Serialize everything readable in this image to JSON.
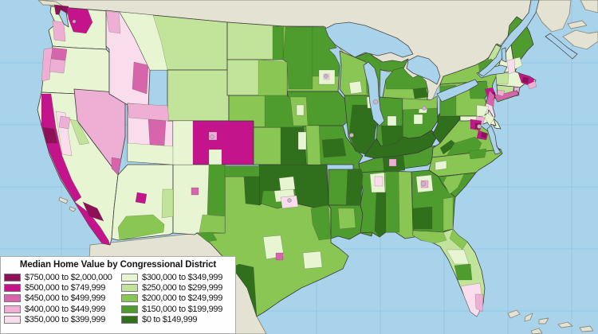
{
  "legend": {
    "title": "Median Home Value by Congressional District",
    "items": [
      {
        "key": "b750",
        "label": "$750,000 to $2,000,000",
        "color": "#8E1057"
      },
      {
        "key": "b500",
        "label": "$500,000 to $749,999",
        "color": "#C4148C"
      },
      {
        "key": "b450",
        "label": "$450,000 to $499,999",
        "color": "#D765AB"
      },
      {
        "key": "b400",
        "label": "$400,000 to $449,999",
        "color": "#EFAFD4"
      },
      {
        "key": "b350",
        "label": "$350,000 to $399,999",
        "color": "#FADDEC"
      },
      {
        "key": "b300",
        "label": "$300,000 to $349,999",
        "color": "#E8F5D2"
      },
      {
        "key": "b250",
        "label": "$250,000 to $299,999",
        "color": "#C2E49A"
      },
      {
        "key": "b200",
        "label": "$200,000 to $249,999",
        "color": "#8AC653"
      },
      {
        "key": "b150",
        "label": "$150,000 to $199,999",
        "color": "#4F9C2E"
      },
      {
        "key": "b0",
        "label": "$0 to $149,999",
        "color": "#30701C"
      }
    ]
  },
  "map": {
    "colors": {
      "ocean": "#A9D3EB",
      "graticule": "#8FC0DF",
      "foreign": "#E4E3D3",
      "foreign_border": "#8C8C7C",
      "metro": "#CBB3CB"
    },
    "regions": {
      "WA": "b300",
      "OR": "b300",
      "CA": "b300",
      "NV": "b400",
      "ID": "b350",
      "MT": "b250",
      "WY": "b250",
      "UT": "b350",
      "CO": "b500",
      "AZ": "b300",
      "NM": "b300",
      "ND": "b250",
      "SD": "b250",
      "NE": "b200",
      "KS": "b200",
      "OK": "b0",
      "TX": "b200",
      "MN": "b200",
      "IA": "b150",
      "MO": "b150",
      "AR": "b150",
      "LA": "b150",
      "WI": "b200",
      "IL": "b150",
      "MI": "b200",
      "MIUP": "b150",
      "IN": "b150",
      "OH": "b150",
      "KY": "b0",
      "TN": "b150",
      "WV": "b0",
      "VA": "b200",
      "NC": "b200",
      "SC": "b150",
      "GA": "b150",
      "AL": "b200",
      "MS": "b150",
      "FL": "b250",
      "PA": "b200",
      "NY": "b200",
      "NJ": "b350",
      "MD": "b300",
      "DE": "b300",
      "VT": "b250",
      "NH": "b300",
      "ME": "b150",
      "MA": "b300",
      "CT": "b250",
      "RI": "b400"
    },
    "districts": {
      "wa-top": "b750",
      "wa-seattle": "b500",
      "wa-coast": "b400",
      "or-coast": "b400",
      "or-portland": "b450",
      "or-salem": "b400",
      "ca-north-coast": "b500",
      "ca-south-coast": "b500",
      "ca-sf": "b750",
      "ca-la": "b750",
      "ca-valley": "b350",
      "ca-sac": "b400",
      "ca-sierra": "b250",
      "nv-vegas": "b450",
      "id-panhandle": "b400",
      "id-east": "b450",
      "mt-west": "b300",
      "ut-north": "b400",
      "ut-slc": "b450",
      "ut-south": "b300",
      "co-west": "b300",
      "co-springs": "b300",
      "co-denver": "b400",
      "az-phoenix": "b500",
      "az-south": "b200",
      "az-east": "b250",
      "nm-east": "b150",
      "nm-se": "b200",
      "nm-abq": "b450",
      "nd-east": "b150",
      "sd-east": "b200",
      "ne-east": "b150",
      "ks-east": "b0",
      "ks-kc": "b300",
      "ok-panhandle": "b150",
      "ok-center": "b300",
      "ok-south": "b150",
      "tx-panhandle": "b0",
      "tx-south": "b0",
      "tx-east": "b150",
      "tx-dfw-outer": "b300",
      "tx-dfw": "b350",
      "tx-austin": "b450",
      "tx-central": "b300",
      "tx-houston": "b300",
      "tx-elpaso": "b150",
      "mn-west": "b150",
      "mn-ne": "b150",
      "mn-msp-outer": "b300",
      "mn-msp": "b350",
      "ia-west": "b200",
      "ia-desmoines": "b300",
      "mo-west": "b200",
      "mo-ozark": "b0",
      "ar-east": "b0",
      "la-center": "b200",
      "wi-east": "b150",
      "wi-south": "b300",
      "il-south": "b0",
      "il-chicago-outer": "b300",
      "il-chicago": "b400",
      "mi-north": "b150",
      "mi-thumb": "b0",
      "mi-detroit": "b300",
      "in-south": "b0",
      "in-indy": "b300",
      "oh-north": "b200",
      "oh-columbus": "b300",
      "tn-middle": "b0",
      "tn-nashville": "b400",
      "ms-ne-outer": "b300",
      "ms-ne": "b350",
      "ms-east": "b0",
      "al-west": "b150",
      "ga-sw": "b0",
      "ga-atlanta-outer": "b300",
      "ga-atlanta": "b400",
      "ga-coast": "b200",
      "fl-panhandle": "b200",
      "fl-ne": "b200",
      "fl-central": "b300",
      "fl-orlando": "b150",
      "fl-south": "b350",
      "fl-miami": "b400",
      "pa-west": "b150",
      "pa-ne": "b150",
      "pa-philly": "b300",
      "ny-adirondacks": "b150",
      "ny-nyc-metro": "b500",
      "ny-nyc": "b750",
      "ny-long-island": "b450",
      "nj-north": "b450",
      "nj-south": "b300",
      "md-baltimore": "b400",
      "md-dc-suburbs": "b500",
      "dc-core": "b750",
      "va-nova": "b500",
      "va-nova-core": "b750",
      "va-sw": "b0",
      "va-south": "b150",
      "nc-triangle": "b150",
      "nc-west": "b300",
      "sc-mid": "b200",
      "me-south": "b300",
      "ma-west": "b250",
      "ma-boston": "b500",
      "ma-boston-core": "b750",
      "ma-cape": "b400",
      "nh-se": "b350",
      "ct-sw": "b400"
    }
  }
}
